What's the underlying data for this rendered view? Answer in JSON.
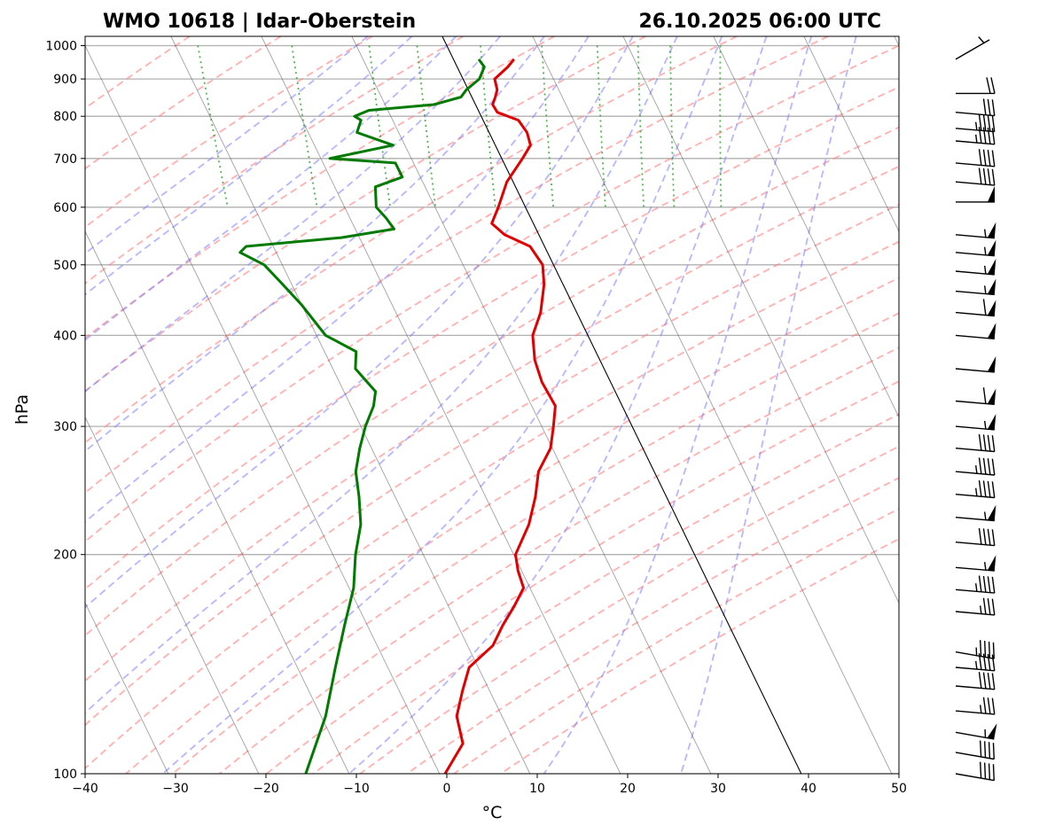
{
  "chart_data": {
    "type": "skew-t",
    "station_title": "WMO 10618 | Idar-Oberstein",
    "datetime_title": "26.10.2025 06:00 UTC",
    "xlabel": "°C",
    "ylabel": "hPa",
    "x_range": [
      -40,
      50
    ],
    "p_range": [
      1030,
      100
    ],
    "x_ticks": [
      -40,
      -30,
      -20,
      -10,
      0,
      10,
      20,
      30,
      40,
      50
    ],
    "x_tick_labels": [
      "−40",
      "−30",
      "−20",
      "−10",
      "0",
      "10",
      "20",
      "30",
      "40",
      "50"
    ],
    "p_ticks": [
      1000,
      900,
      800,
      700,
      600,
      500,
      400,
      300,
      200,
      100
    ],
    "p_tick_labels": [
      "1000",
      "900",
      "800",
      "700",
      "600",
      "500",
      "400",
      "300",
      "200",
      "100"
    ],
    "skew_deg_per_decade": 39.2,
    "colors": {
      "temperature": "#e00000",
      "dewpoint": "#007a00",
      "dry_adiabat": "#ff8080",
      "moist_adiabat": "#8080ff",
      "mixing_ratio": "#2ca02c",
      "isotherm": "#555555",
      "zero_isotherm": "#000000",
      "wind_barb": "#000000"
    },
    "temperature": {
      "name": "Temperature",
      "points": [
        [
          958,
          6.7
        ],
        [
          935,
          5.6
        ],
        [
          900,
          3.5
        ],
        [
          870,
          3.2
        ],
        [
          850,
          2.6
        ],
        [
          830,
          1.9
        ],
        [
          810,
          2.0
        ],
        [
          790,
          3.9
        ],
        [
          760,
          4.2
        ],
        [
          730,
          3.9
        ],
        [
          700,
          2.3
        ],
        [
          650,
          -0.7
        ],
        [
          600,
          -3.0
        ],
        [
          570,
          -4.6
        ],
        [
          550,
          -3.8
        ],
        [
          530,
          -1.6
        ],
        [
          500,
          -1.2
        ],
        [
          470,
          -2.1
        ],
        [
          430,
          -4.0
        ],
        [
          400,
          -6.1
        ],
        [
          370,
          -7.2
        ],
        [
          345,
          -7.6
        ],
        [
          320,
          -7.4
        ],
        [
          300,
          -8.7
        ],
        [
          280,
          -10.2
        ],
        [
          260,
          -12.8
        ],
        [
          240,
          -14.5
        ],
        [
          220,
          -16.7
        ],
        [
          200,
          -19.8
        ],
        [
          190,
          -20.4
        ],
        [
          180,
          -20.7
        ],
        [
          170,
          -22.7
        ],
        [
          160,
          -25.0
        ],
        [
          150,
          -27.2
        ],
        [
          140,
          -31.0
        ],
        [
          130,
          -33.0
        ],
        [
          120,
          -35.0
        ],
        [
          110,
          -35.8
        ],
        [
          100,
          -39.4
        ]
      ]
    },
    "dewpoint": {
      "name": "Dewpoint",
      "points": [
        [
          958,
          2.8
        ],
        [
          935,
          3.0
        ],
        [
          900,
          1.8
        ],
        [
          870,
          -0.2
        ],
        [
          850,
          -1.2
        ],
        [
          830,
          -4.6
        ],
        [
          815,
          -12.1
        ],
        [
          800,
          -14.0
        ],
        [
          790,
          -13.5
        ],
        [
          760,
          -14.6
        ],
        [
          730,
          -11.3
        ],
        [
          700,
          -19.0
        ],
        [
          690,
          -12.0
        ],
        [
          660,
          -12.0
        ],
        [
          640,
          -15.5
        ],
        [
          600,
          -16.5
        ],
        [
          580,
          -16.0
        ],
        [
          560,
          -15.7
        ],
        [
          545,
          -22.0
        ],
        [
          530,
          -33.0
        ],
        [
          520,
          -34.0
        ],
        [
          500,
          -32.0
        ],
        [
          470,
          -31.0
        ],
        [
          440,
          -30.0
        ],
        [
          400,
          -29.0
        ],
        [
          380,
          -26.5
        ],
        [
          360,
          -27.5
        ],
        [
          335,
          -26.5
        ],
        [
          320,
          -27.5
        ],
        [
          300,
          -29.5
        ],
        [
          280,
          -31.3
        ],
        [
          260,
          -33.0
        ],
        [
          240,
          -34.0
        ],
        [
          220,
          -35.3
        ],
        [
          200,
          -37.5
        ],
        [
          180,
          -39.5
        ],
        [
          160,
          -42.5
        ],
        [
          140,
          -45.8
        ],
        [
          120,
          -49.5
        ],
        [
          100,
          -54.8
        ]
      ]
    },
    "wind_barbs": [
      {
        "p": 100,
        "dir": 280,
        "speed_kt": 40
      },
      {
        "p": 107,
        "dir": 280,
        "speed_kt": 40
      },
      {
        "p": 114,
        "dir": 280,
        "speed_kt": 55
      },
      {
        "p": 122,
        "dir": 275,
        "speed_kt": 35
      },
      {
        "p": 132,
        "dir": 275,
        "speed_kt": 40
      },
      {
        "p": 140,
        "dir": 275,
        "speed_kt": 45
      },
      {
        "p": 147,
        "dir": 280,
        "speed_kt": 45
      },
      {
        "p": 167,
        "dir": 275,
        "speed_kt": 35
      },
      {
        "p": 179,
        "dir": 275,
        "speed_kt": 45
      },
      {
        "p": 192,
        "dir": 275,
        "speed_kt": 55
      },
      {
        "p": 208,
        "dir": 275,
        "speed_kt": 40
      },
      {
        "p": 225,
        "dir": 275,
        "speed_kt": 55
      },
      {
        "p": 242,
        "dir": 275,
        "speed_kt": 45
      },
      {
        "p": 260,
        "dir": 275,
        "speed_kt": 45
      },
      {
        "p": 280,
        "dir": 275,
        "speed_kt": 40
      },
      {
        "p": 300,
        "dir": 275,
        "speed_kt": 55
      },
      {
        "p": 325,
        "dir": 275,
        "speed_kt": 60
      },
      {
        "p": 360,
        "dir": 275,
        "speed_kt": 50
      },
      {
        "p": 400,
        "dir": 275,
        "speed_kt": 50
      },
      {
        "p": 430,
        "dir": 275,
        "speed_kt": 60
      },
      {
        "p": 460,
        "dir": 275,
        "speed_kt": 55
      },
      {
        "p": 490,
        "dir": 275,
        "speed_kt": 55
      },
      {
        "p": 520,
        "dir": 275,
        "speed_kt": 55
      },
      {
        "p": 550,
        "dir": 275,
        "speed_kt": 55
      },
      {
        "p": 610,
        "dir": 270,
        "speed_kt": 50
      },
      {
        "p": 650,
        "dir": 275,
        "speed_kt": 40
      },
      {
        "p": 690,
        "dir": 275,
        "speed_kt": 40
      },
      {
        "p": 740,
        "dir": 275,
        "speed_kt": 45
      },
      {
        "p": 770,
        "dir": 275,
        "speed_kt": 45
      },
      {
        "p": 810,
        "dir": 275,
        "speed_kt": 30
      },
      {
        "p": 860,
        "dir": 270,
        "speed_kt": 20
      },
      {
        "p": 958,
        "dir": 240,
        "speed_kt": 5
      }
    ],
    "dry_adiabats_theta_C": [
      -30,
      -20,
      -10,
      0,
      10,
      20,
      30,
      40,
      50,
      60,
      70,
      80,
      90,
      100,
      110,
      120,
      130,
      140,
      150,
      160,
      170,
      180,
      190
    ],
    "moist_adiabats_T1000_C": [
      -10,
      -5,
      0,
      5,
      10,
      15,
      20,
      25,
      30,
      35,
      40,
      45
    ],
    "mixing_ratios_gkg": [
      0.4,
      1,
      2,
      3,
      5,
      8,
      12,
      16,
      20,
      28
    ],
    "isotherms_C": [
      -160,
      -150,
      -140,
      -130,
      -120,
      -110,
      -100,
      -90,
      -80,
      -70,
      -60,
      -50,
      -40,
      -30,
      -20,
      -10,
      0,
      10,
      20,
      30,
      40,
      50
    ]
  }
}
